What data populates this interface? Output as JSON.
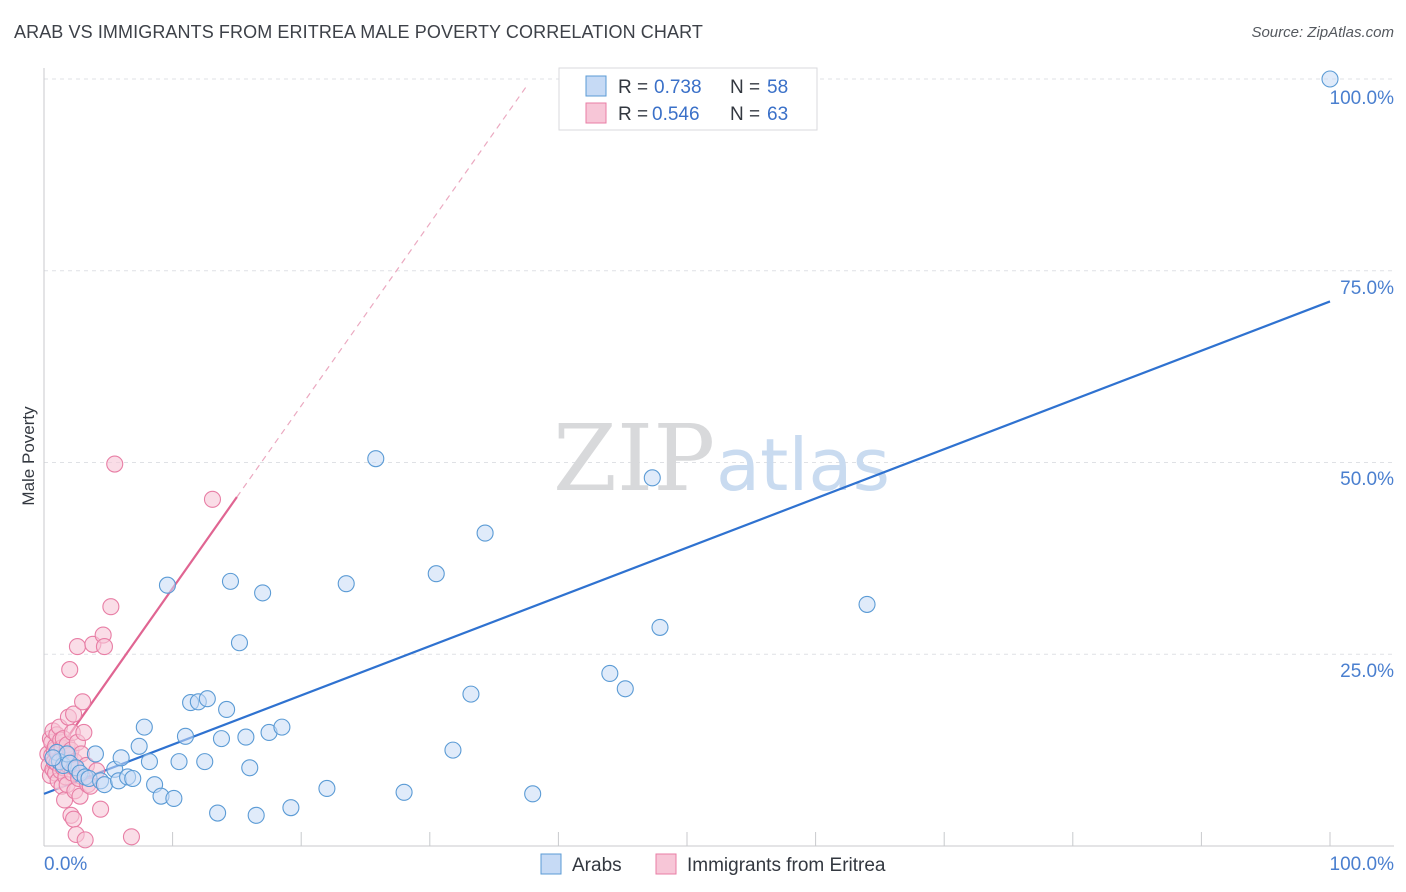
{
  "title": "ARAB VS IMMIGRANTS FROM ERITREA MALE POVERTY CORRELATION CHART",
  "source": "Source: ZipAtlas.com",
  "watermark": {
    "zip": "ZIP",
    "atlas": "atlas"
  },
  "colors": {
    "blue": "#5b9bd5",
    "blue_line": "#2f72d0",
    "blue_fill": "#c6daf5",
    "pink": "#e87ea5",
    "pink_line": "#e06592",
    "pink_fill": "#f7c6d7",
    "label_blue": "#4a7fcf"
  },
  "legend": {
    "rows": [
      {
        "r_label": "R =",
        "r_value": "0.738",
        "n_label": "N =",
        "n_value": "58"
      },
      {
        "r_label": "R =",
        "r_value": "0.546",
        "n_label": "N =",
        "n_value": "63"
      }
    ]
  },
  "chart_data": {
    "type": "scatter",
    "title": "ARAB VS IMMIGRANTS FROM ERITREA MALE POVERTY CORRELATION CHART",
    "xlabel": "",
    "ylabel": "Male Poverty",
    "xlim": [
      0,
      100
    ],
    "ylim": [
      0,
      100
    ],
    "x_tick_labels": [
      "0.0%",
      "100.0%"
    ],
    "y_tick_labels": [
      "25.0%",
      "50.0%",
      "75.0%",
      "100.0%"
    ],
    "y_ticks": [
      25,
      50,
      75,
      100
    ],
    "grid": true,
    "legend_position": "bottom",
    "series": [
      {
        "name": "Arabs",
        "r": 0.738,
        "n": 58,
        "trend": {
          "x0": 0,
          "y0": 6.8,
          "x1": 100,
          "y1": 71.0,
          "style": "solid"
        },
        "points": [
          [
            1.0,
            12.2
          ],
          [
            1.2,
            11.0
          ],
          [
            1.5,
            10.5
          ],
          [
            1.8,
            12.0
          ],
          [
            2.0,
            10.8
          ],
          [
            2.5,
            10.2
          ],
          [
            2.8,
            9.5
          ],
          [
            3.2,
            9.0
          ],
          [
            3.5,
            8.8
          ],
          [
            4.0,
            12.0
          ],
          [
            4.4,
            8.5
          ],
          [
            4.7,
            8.0
          ],
          [
            5.5,
            10.0
          ],
          [
            5.8,
            8.5
          ],
          [
            6.0,
            11.5
          ],
          [
            6.5,
            9.0
          ],
          [
            6.9,
            8.8
          ],
          [
            7.4,
            13.0
          ],
          [
            7.8,
            15.5
          ],
          [
            8.2,
            11.0
          ],
          [
            8.6,
            8.0
          ],
          [
            9.1,
            6.5
          ],
          [
            9.6,
            34.0
          ],
          [
            10.1,
            6.2
          ],
          [
            10.5,
            11.0
          ],
          [
            11.0,
            14.3
          ],
          [
            11.4,
            18.7
          ],
          [
            12.0,
            18.8
          ],
          [
            12.5,
            11.0
          ],
          [
            12.7,
            19.2
          ],
          [
            13.5,
            4.3
          ],
          [
            13.8,
            14.0
          ],
          [
            14.2,
            17.8
          ],
          [
            14.5,
            34.5
          ],
          [
            15.2,
            26.5
          ],
          [
            15.7,
            14.2
          ],
          [
            16.0,
            10.2
          ],
          [
            16.5,
            4.0
          ],
          [
            17.0,
            33.0
          ],
          [
            17.5,
            14.8
          ],
          [
            18.5,
            15.5
          ],
          [
            19.2,
            5.0
          ],
          [
            22.0,
            7.5
          ],
          [
            23.5,
            34.2
          ],
          [
            25.8,
            50.5
          ],
          [
            28.0,
            7.0
          ],
          [
            30.5,
            35.5
          ],
          [
            31.8,
            12.5
          ],
          [
            33.2,
            19.8
          ],
          [
            34.3,
            40.8
          ],
          [
            38.0,
            6.8
          ],
          [
            44.0,
            22.5
          ],
          [
            45.2,
            20.5
          ],
          [
            47.3,
            48.0
          ],
          [
            47.9,
            28.5
          ],
          [
            64.0,
            31.5
          ],
          [
            100.0,
            100.0
          ],
          [
            0.7,
            11.5
          ]
        ]
      },
      {
        "name": "Immigrants from Eritrea",
        "r": 0.546,
        "n": 63,
        "trend": {
          "x0": 0,
          "y0": 9.8,
          "x1": 15.0,
          "y1": 45.5,
          "style": "solid",
          "extension": {
            "x1": 37.5,
            "y1": 99.0,
            "style": "dashed"
          }
        },
        "points": [
          [
            0.3,
            12.0
          ],
          [
            0.4,
            10.5
          ],
          [
            0.5,
            14.0
          ],
          [
            0.5,
            9.2
          ],
          [
            0.6,
            11.8
          ],
          [
            0.6,
            13.5
          ],
          [
            0.7,
            10.0
          ],
          [
            0.7,
            15.0
          ],
          [
            0.8,
            12.5
          ],
          [
            0.8,
            11.0
          ],
          [
            0.9,
            9.5
          ],
          [
            0.9,
            13.0
          ],
          [
            1.0,
            14.5
          ],
          [
            1.0,
            10.8
          ],
          [
            1.1,
            12.2
          ],
          [
            1.1,
            8.5
          ],
          [
            1.2,
            11.2
          ],
          [
            1.2,
            15.5
          ],
          [
            1.3,
            9.8
          ],
          [
            1.3,
            13.8
          ],
          [
            1.4,
            12.8
          ],
          [
            1.4,
            7.8
          ],
          [
            1.5,
            10.2
          ],
          [
            1.5,
            14.0
          ],
          [
            1.6,
            11.5
          ],
          [
            1.6,
            6.0
          ],
          [
            1.7,
            9.0
          ],
          [
            1.7,
            12.0
          ],
          [
            1.8,
            13.2
          ],
          [
            1.8,
            8.0
          ],
          [
            1.9,
            10.5
          ],
          [
            1.9,
            16.8
          ],
          [
            2.0,
            11.8
          ],
          [
            2.0,
            23.0
          ],
          [
            2.1,
            4.0
          ],
          [
            2.1,
            12.5
          ],
          [
            2.2,
            9.5
          ],
          [
            2.2,
            14.8
          ],
          [
            2.3,
            3.5
          ],
          [
            2.3,
            17.2
          ],
          [
            2.4,
            7.2
          ],
          [
            2.4,
            11.0
          ],
          [
            2.5,
            10.0
          ],
          [
            2.5,
            1.5
          ],
          [
            2.6,
            13.5
          ],
          [
            2.6,
            26.0
          ],
          [
            2.7,
            8.8
          ],
          [
            2.8,
            6.5
          ],
          [
            2.9,
            12.0
          ],
          [
            3.0,
            18.8
          ],
          [
            3.1,
            14.8
          ],
          [
            3.2,
            0.8
          ],
          [
            3.3,
            10.5
          ],
          [
            3.4,
            8.0
          ],
          [
            3.6,
            7.8
          ],
          [
            3.8,
            26.3
          ],
          [
            4.1,
            9.8
          ],
          [
            4.4,
            4.8
          ],
          [
            4.6,
            27.5
          ],
          [
            4.7,
            26.0
          ],
          [
            5.2,
            31.2
          ],
          [
            5.5,
            49.8
          ],
          [
            6.8,
            1.2
          ]
        ],
        "outliers": [
          [
            13.1,
            45.2
          ]
        ]
      }
    ]
  },
  "bottom_legend": {
    "items": [
      {
        "label": "Arabs"
      },
      {
        "label": "Immigrants from Eritrea"
      }
    ]
  }
}
